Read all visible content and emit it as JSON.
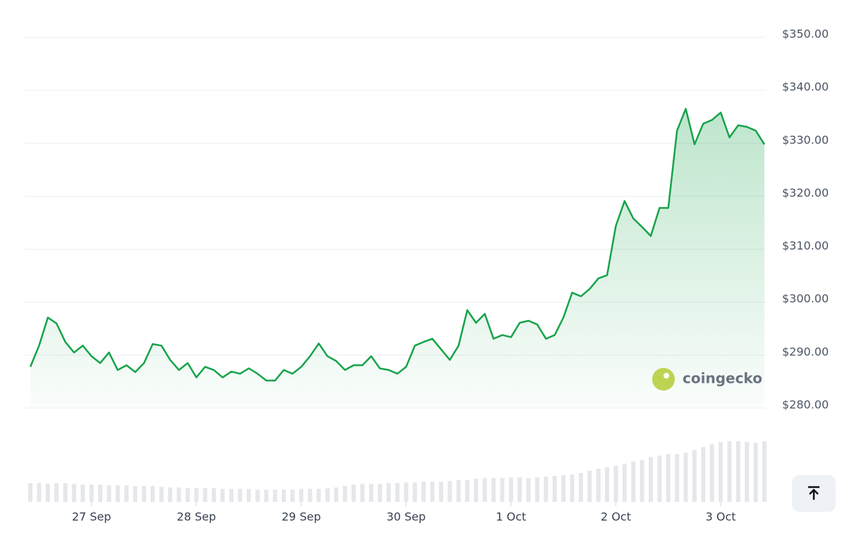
{
  "chart_data": {
    "type": "line",
    "categories": [
      null,
      null,
      null,
      null,
      null,
      null,
      null,
      "27 Sep",
      null,
      null,
      null,
      null,
      null,
      null,
      null,
      null,
      null,
      null,
      null,
      "28 Sep",
      null,
      null,
      null,
      null,
      null,
      null,
      null,
      null,
      null,
      null,
      null,
      "29 Sep",
      null,
      null,
      null,
      null,
      null,
      null,
      null,
      null,
      null,
      null,
      null,
      "30 Sep",
      null,
      null,
      null,
      null,
      null,
      null,
      null,
      null,
      null,
      null,
      null,
      "1 Oct",
      null,
      null,
      null,
      null,
      null,
      null,
      null,
      null,
      null,
      null,
      null,
      "2 Oct",
      null,
      null,
      null,
      null,
      null,
      null,
      null,
      null,
      null,
      null,
      null,
      "3 Oct",
      null,
      null,
      null,
      null,
      null
    ],
    "values": [
      287.8,
      291.8,
      297.1,
      296.0,
      292.5,
      290.5,
      291.8,
      289.8,
      288.5,
      290.5,
      287.2,
      288.1,
      286.8,
      288.5,
      292.1,
      291.8,
      289.1,
      287.2,
      288.5,
      285.8,
      287.8,
      287.2,
      285.8,
      286.9,
      286.5,
      287.5,
      286.5,
      285.2,
      285.2,
      287.2,
      286.5,
      287.8,
      289.8,
      292.2,
      289.8,
      288.9,
      287.2,
      288.1,
      288.1,
      289.8,
      287.5,
      287.2,
      286.5,
      287.8,
      291.8,
      292.5,
      293.1,
      291.1,
      289.1,
      291.8,
      298.5,
      296.1,
      297.8,
      293.1,
      293.8,
      293.4,
      296.1,
      296.5,
      295.8,
      293.1,
      293.8,
      297.1,
      301.8,
      301.1,
      302.5,
      304.5,
      305.1,
      314.4,
      319.1,
      315.8,
      314.2,
      312.5,
      317.8,
      317.8,
      332.4,
      336.5,
      329.8,
      333.7,
      334.4,
      335.8,
      331.1,
      333.4,
      333.1,
      332.4,
      329.8
    ],
    "volume": [
      26,
      26,
      25,
      26,
      26,
      25,
      24,
      24,
      24,
      23,
      23,
      23,
      22,
      22,
      22,
      21,
      20,
      20,
      19,
      19,
      19,
      19,
      18,
      18,
      18,
      18,
      17,
      17,
      17,
      17,
      17,
      18,
      18,
      18,
      19,
      20,
      22,
      24,
      25,
      25,
      25,
      26,
      26,
      27,
      27,
      28,
      28,
      28,
      29,
      30,
      30,
      32,
      33,
      33,
      33,
      34,
      34,
      33,
      34,
      35,
      36,
      37,
      38,
      40,
      43,
      46,
      48,
      50,
      53,
      56,
      58,
      62,
      64,
      66,
      66,
      68,
      72,
      76,
      80,
      83,
      84,
      84,
      83,
      82,
      84
    ],
    "color": "#16a34a",
    "ylim": [
      280,
      350
    ],
    "yticks": [
      {
        "value": 280,
        "label": "$280.00"
      },
      {
        "value": 290,
        "label": "$290.00"
      },
      {
        "value": 300,
        "label": "$300.00"
      },
      {
        "value": 310,
        "label": "$310.00"
      },
      {
        "value": 320,
        "label": "$320.00"
      },
      {
        "value": 330,
        "label": "$330.00"
      },
      {
        "value": 340,
        "label": "$340.00"
      },
      {
        "value": 350,
        "label": "$350.00"
      }
    ],
    "grid": true,
    "watermark": "coingecko"
  }
}
